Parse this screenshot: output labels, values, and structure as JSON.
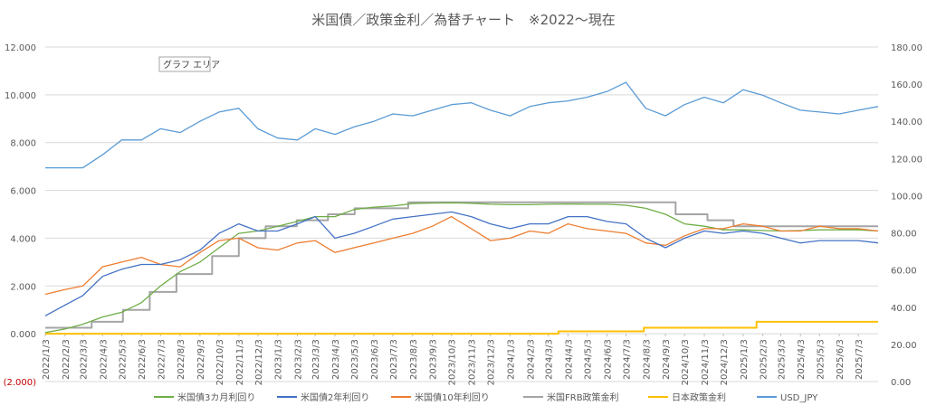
{
  "chart_data": {
    "type": "line",
    "title": "米国債／政策金利／為替チャート　※2022～現在",
    "area_tag": "グラフ エリア",
    "left_axis": {
      "ylim": [
        -2,
        12
      ],
      "ticks": [
        -2,
        0,
        2,
        4,
        6,
        8,
        10,
        12
      ],
      "tick_labels": [
        "(2.000)",
        "0.000",
        "2.000",
        "4.000",
        "6.000",
        "8.000",
        "10.000",
        "12.000"
      ]
    },
    "right_axis": {
      "ylim": [
        0,
        180
      ],
      "ticks": [
        0,
        20,
        40,
        60,
        80,
        100,
        120,
        140,
        160,
        180
      ],
      "tick_labels": [
        "0.00",
        "20.00",
        "40.00",
        "60.00",
        "80.00",
        "100.00",
        "120.00",
        "140.00",
        "160.00",
        "180.00"
      ]
    },
    "x_tick_labels": [
      "2022/1/3",
      "2022/2/3",
      "2022/3/3",
      "2022/4/3",
      "2022/5/3",
      "2022/6/3",
      "2022/7/3",
      "2022/8/3",
      "2022/9/3",
      "2022/10/3",
      "2022/11/3",
      "2022/12/3",
      "2023/1/3",
      "2023/2/3",
      "2023/3/3",
      "2023/4/3",
      "2023/5/3",
      "2023/6/3",
      "2023/7/3",
      "2023/8/3",
      "2023/9/3",
      "2023/10/3",
      "2023/11/3",
      "2023/12/3",
      "2024/1/3",
      "2024/2/3",
      "2024/3/3",
      "2024/4/3",
      "2024/5/3",
      "2024/6/3",
      "2024/7/3",
      "2024/8/3",
      "2024/9/3",
      "2024/10/3",
      "2024/11/3",
      "2024/12/3",
      "2025/1/3",
      "2025/2/3",
      "2025/3/3",
      "2025/4/3",
      "2025/5/3",
      "2025/6/3",
      "2025/7/3"
    ],
    "x_range": [
      "2022/1/3",
      "2025/8/3"
    ],
    "grid": true,
    "legend_position": "bottom",
    "series": [
      {
        "name": "米国債3カ月利回り",
        "color": "#70ad47",
        "axis": "left",
        "style": "line",
        "points": [
          [
            "2022/1/3",
            0.05
          ],
          [
            "2022/2/3",
            0.2
          ],
          [
            "2022/3/3",
            0.4
          ],
          [
            "2022/4/3",
            0.7
          ],
          [
            "2022/5/3",
            0.9
          ],
          [
            "2022/6/3",
            1.3
          ],
          [
            "2022/7/3",
            2.0
          ],
          [
            "2022/8/3",
            2.6
          ],
          [
            "2022/9/3",
            3.0
          ],
          [
            "2022/10/3",
            3.6
          ],
          [
            "2022/11/3",
            4.2
          ],
          [
            "2022/12/3",
            4.3
          ],
          [
            "2023/1/3",
            4.5
          ],
          [
            "2023/2/3",
            4.7
          ],
          [
            "2023/3/3",
            4.9
          ],
          [
            "2023/4/3",
            4.9
          ],
          [
            "2023/5/3",
            5.2
          ],
          [
            "2023/6/3",
            5.3
          ],
          [
            "2023/7/3",
            5.35
          ],
          [
            "2023/8/3",
            5.45
          ],
          [
            "2023/9/3",
            5.47
          ],
          [
            "2023/10/3",
            5.48
          ],
          [
            "2023/11/3",
            5.46
          ],
          [
            "2023/12/3",
            5.42
          ],
          [
            "2024/1/3",
            5.4
          ],
          [
            "2024/2/3",
            5.4
          ],
          [
            "2024/3/3",
            5.42
          ],
          [
            "2024/4/3",
            5.43
          ],
          [
            "2024/5/3",
            5.42
          ],
          [
            "2024/6/3",
            5.42
          ],
          [
            "2024/7/3",
            5.38
          ],
          [
            "2024/8/3",
            5.25
          ],
          [
            "2024/9/3",
            5.0
          ],
          [
            "2024/10/3",
            4.6
          ],
          [
            "2024/11/3",
            4.5
          ],
          [
            "2024/12/3",
            4.35
          ],
          [
            "2025/1/3",
            4.35
          ],
          [
            "2025/2/3",
            4.32
          ],
          [
            "2025/3/3",
            4.3
          ],
          [
            "2025/4/3",
            4.32
          ],
          [
            "2025/5/3",
            4.35
          ],
          [
            "2025/6/3",
            4.35
          ],
          [
            "2025/7/3",
            4.35
          ],
          [
            "2025/8/3",
            4.3
          ]
        ]
      },
      {
        "name": "米国債2年利回り",
        "color": "#4472c4",
        "axis": "left",
        "style": "line",
        "points": [
          [
            "2022/1/3",
            0.75
          ],
          [
            "2022/2/3",
            1.2
          ],
          [
            "2022/3/3",
            1.6
          ],
          [
            "2022/4/3",
            2.4
          ],
          [
            "2022/5/3",
            2.7
          ],
          [
            "2022/6/3",
            2.9
          ],
          [
            "2022/7/3",
            2.9
          ],
          [
            "2022/8/3",
            3.1
          ],
          [
            "2022/9/3",
            3.5
          ],
          [
            "2022/10/3",
            4.2
          ],
          [
            "2022/11/3",
            4.6
          ],
          [
            "2022/12/3",
            4.3
          ],
          [
            "2023/1/3",
            4.3
          ],
          [
            "2023/2/3",
            4.6
          ],
          [
            "2023/3/3",
            4.9
          ],
          [
            "2023/4/3",
            4.0
          ],
          [
            "2023/5/3",
            4.2
          ],
          [
            "2023/6/3",
            4.5
          ],
          [
            "2023/7/3",
            4.8
          ],
          [
            "2023/8/3",
            4.9
          ],
          [
            "2023/9/3",
            5.0
          ],
          [
            "2023/10/3",
            5.1
          ],
          [
            "2023/11/3",
            4.9
          ],
          [
            "2023/12/3",
            4.6
          ],
          [
            "2024/1/3",
            4.4
          ],
          [
            "2024/2/3",
            4.6
          ],
          [
            "2024/3/3",
            4.6
          ],
          [
            "2024/4/3",
            4.9
          ],
          [
            "2024/5/3",
            4.9
          ],
          [
            "2024/6/3",
            4.7
          ],
          [
            "2024/7/3",
            4.6
          ],
          [
            "2024/8/3",
            4.0
          ],
          [
            "2024/9/3",
            3.6
          ],
          [
            "2024/10/3",
            4.0
          ],
          [
            "2024/11/3",
            4.3
          ],
          [
            "2024/12/3",
            4.2
          ],
          [
            "2025/1/3",
            4.3
          ],
          [
            "2025/2/3",
            4.2
          ],
          [
            "2025/3/3",
            4.0
          ],
          [
            "2025/4/3",
            3.8
          ],
          [
            "2025/5/3",
            3.9
          ],
          [
            "2025/6/3",
            3.9
          ],
          [
            "2025/7/3",
            3.9
          ],
          [
            "2025/8/3",
            3.8
          ]
        ]
      },
      {
        "name": "米国債10年利回り",
        "color": "#ed7d31",
        "axis": "left",
        "style": "line",
        "points": [
          [
            "2022/1/3",
            1.65
          ],
          [
            "2022/2/3",
            1.85
          ],
          [
            "2022/3/3",
            2.0
          ],
          [
            "2022/4/3",
            2.8
          ],
          [
            "2022/5/3",
            3.0
          ],
          [
            "2022/6/3",
            3.2
          ],
          [
            "2022/7/3",
            2.9
          ],
          [
            "2022/8/3",
            2.8
          ],
          [
            "2022/9/3",
            3.4
          ],
          [
            "2022/10/3",
            3.9
          ],
          [
            "2022/11/3",
            4.0
          ],
          [
            "2022/12/3",
            3.6
          ],
          [
            "2023/1/3",
            3.5
          ],
          [
            "2023/2/3",
            3.8
          ],
          [
            "2023/3/3",
            3.9
          ],
          [
            "2023/4/3",
            3.4
          ],
          [
            "2023/5/3",
            3.6
          ],
          [
            "2023/6/3",
            3.8
          ],
          [
            "2023/7/3",
            4.0
          ],
          [
            "2023/8/3",
            4.2
          ],
          [
            "2023/9/3",
            4.5
          ],
          [
            "2023/10/3",
            4.9
          ],
          [
            "2023/11/3",
            4.4
          ],
          [
            "2023/12/3",
            3.9
          ],
          [
            "2024/1/3",
            4.0
          ],
          [
            "2024/2/3",
            4.3
          ],
          [
            "2024/3/3",
            4.2
          ],
          [
            "2024/4/3",
            4.6
          ],
          [
            "2024/5/3",
            4.4
          ],
          [
            "2024/6/3",
            4.3
          ],
          [
            "2024/7/3",
            4.2
          ],
          [
            "2024/8/3",
            3.8
          ],
          [
            "2024/9/3",
            3.7
          ],
          [
            "2024/10/3",
            4.1
          ],
          [
            "2024/11/3",
            4.4
          ],
          [
            "2024/12/3",
            4.4
          ],
          [
            "2025/1/3",
            4.6
          ],
          [
            "2025/2/3",
            4.5
          ],
          [
            "2025/3/3",
            4.3
          ],
          [
            "2025/4/3",
            4.3
          ],
          [
            "2025/5/3",
            4.5
          ],
          [
            "2025/6/3",
            4.4
          ],
          [
            "2025/7/3",
            4.4
          ],
          [
            "2025/8/3",
            4.3
          ]
        ]
      },
      {
        "name": "米国FRB政策金利",
        "color": "#a5a5a5",
        "axis": "left",
        "style": "step",
        "points": [
          [
            "2022/1/3",
            0.25
          ],
          [
            "2022/3/17",
            0.5
          ],
          [
            "2022/5/5",
            1.0
          ],
          [
            "2022/6/16",
            1.75
          ],
          [
            "2022/7/28",
            2.5
          ],
          [
            "2022/9/22",
            3.25
          ],
          [
            "2022/11/3",
            4.0
          ],
          [
            "2022/12/15",
            4.5
          ],
          [
            "2023/2/2",
            4.75
          ],
          [
            "2023/3/23",
            5.0
          ],
          [
            "2023/5/4",
            5.25
          ],
          [
            "2023/7/27",
            5.5
          ],
          [
            "2024/9/19",
            5.0
          ],
          [
            "2024/11/8",
            4.75
          ],
          [
            "2024/12/19",
            4.5
          ],
          [
            "2025/8/3",
            4.5
          ]
        ]
      },
      {
        "name": "日本政策金利",
        "color": "#ffc000",
        "axis": "left",
        "style": "step",
        "points": [
          [
            "2022/1/3",
            0.0
          ],
          [
            "2024/3/19",
            0.1
          ],
          [
            "2024/7/31",
            0.25
          ],
          [
            "2025/1/24",
            0.5
          ],
          [
            "2025/8/3",
            0.5
          ]
        ]
      },
      {
        "name": "USD_JPY",
        "color": "#5b9bd5",
        "axis": "right",
        "style": "line",
        "points": [
          [
            "2022/1/3",
            115
          ],
          [
            "2022/2/3",
            115
          ],
          [
            "2022/3/3",
            115
          ],
          [
            "2022/4/3",
            122
          ],
          [
            "2022/5/3",
            130
          ],
          [
            "2022/6/3",
            130
          ],
          [
            "2022/7/3",
            136
          ],
          [
            "2022/8/3",
            134
          ],
          [
            "2022/9/3",
            140
          ],
          [
            "2022/10/3",
            145
          ],
          [
            "2022/11/3",
            147
          ],
          [
            "2022/12/3",
            136
          ],
          [
            "2023/1/3",
            131
          ],
          [
            "2023/2/3",
            130
          ],
          [
            "2023/3/3",
            136
          ],
          [
            "2023/4/3",
            133
          ],
          [
            "2023/5/3",
            137
          ],
          [
            "2023/6/3",
            140
          ],
          [
            "2023/7/3",
            144
          ],
          [
            "2023/8/3",
            143
          ],
          [
            "2023/9/3",
            146
          ],
          [
            "2023/10/3",
            149
          ],
          [
            "2023/11/3",
            150
          ],
          [
            "2023/12/3",
            146
          ],
          [
            "2024/1/3",
            143
          ],
          [
            "2024/2/3",
            148
          ],
          [
            "2024/3/3",
            150
          ],
          [
            "2024/4/3",
            151
          ],
          [
            "2024/5/3",
            153
          ],
          [
            "2024/6/3",
            156
          ],
          [
            "2024/7/3",
            161
          ],
          [
            "2024/8/3",
            147
          ],
          [
            "2024/9/3",
            143
          ],
          [
            "2024/10/3",
            149
          ],
          [
            "2024/11/3",
            153
          ],
          [
            "2024/12/3",
            150
          ],
          [
            "2025/1/3",
            157
          ],
          [
            "2025/2/3",
            154
          ],
          [
            "2025/3/3",
            150
          ],
          [
            "2025/4/3",
            146
          ],
          [
            "2025/5/3",
            145
          ],
          [
            "2025/6/3",
            144
          ],
          [
            "2025/7/3",
            146
          ],
          [
            "2025/8/3",
            148
          ]
        ]
      }
    ]
  }
}
